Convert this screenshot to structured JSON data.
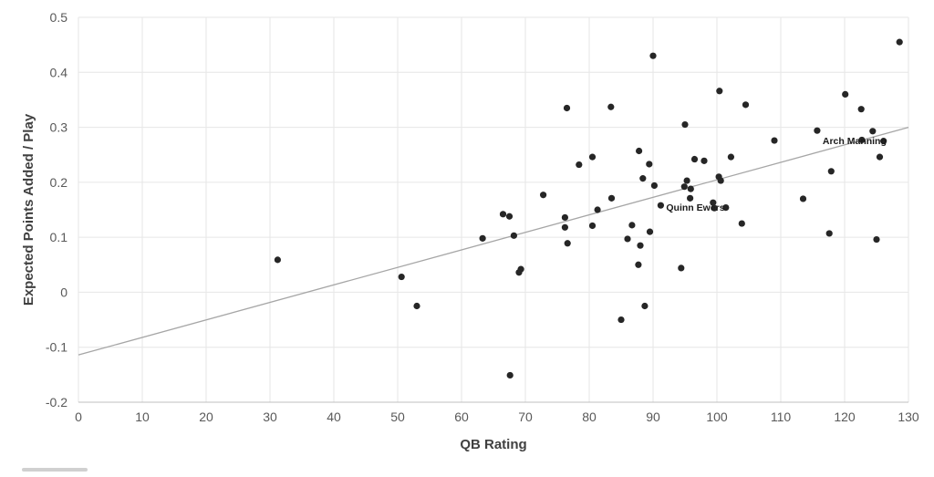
{
  "chart_data": {
    "type": "scatter",
    "xlabel": "QB Rating",
    "ylabel": "Expected Points Added / Play",
    "xlim": [
      0,
      130
    ],
    "ylim": [
      -0.2,
      0.5
    ],
    "x_ticks": [
      0,
      10,
      20,
      30,
      40,
      50,
      60,
      70,
      80,
      90,
      100,
      110,
      120,
      130
    ],
    "y_ticks": [
      -0.2,
      -0.1,
      0,
      0.1,
      0.2,
      0.3,
      0.4,
      0.5
    ],
    "grid": true,
    "point_color": "#262626",
    "trendline": {
      "from": [
        0,
        -0.114
      ],
      "to": [
        130,
        0.3
      ],
      "color": "#a6a6a6"
    },
    "points": [
      {
        "x": 31.2,
        "y": 0.059
      },
      {
        "x": 50.6,
        "y": 0.028
      },
      {
        "x": 53.0,
        "y": -0.025
      },
      {
        "x": 63.3,
        "y": 0.098
      },
      {
        "x": 66.5,
        "y": 0.142
      },
      {
        "x": 67.5,
        "y": 0.138
      },
      {
        "x": 67.6,
        "y": -0.151
      },
      {
        "x": 68.2,
        "y": 0.103
      },
      {
        "x": 69.0,
        "y": 0.036
      },
      {
        "x": 69.3,
        "y": 0.042
      },
      {
        "x": 72.8,
        "y": 0.177
      },
      {
        "x": 76.2,
        "y": 0.136
      },
      {
        "x": 76.2,
        "y": 0.118
      },
      {
        "x": 76.5,
        "y": 0.335
      },
      {
        "x": 76.6,
        "y": 0.089
      },
      {
        "x": 78.4,
        "y": 0.232
      },
      {
        "x": 80.5,
        "y": 0.246
      },
      {
        "x": 80.5,
        "y": 0.121
      },
      {
        "x": 81.3,
        "y": 0.15
      },
      {
        "x": 83.4,
        "y": 0.337
      },
      {
        "x": 83.5,
        "y": 0.171
      },
      {
        "x": 85.0,
        "y": -0.05
      },
      {
        "x": 86.0,
        "y": 0.097
      },
      {
        "x": 86.7,
        "y": 0.122
      },
      {
        "x": 87.7,
        "y": 0.05
      },
      {
        "x": 87.8,
        "y": 0.257
      },
      {
        "x": 88.0,
        "y": 0.085
      },
      {
        "x": 88.4,
        "y": 0.207
      },
      {
        "x": 88.7,
        "y": -0.025
      },
      {
        "x": 89.4,
        "y": 0.233
      },
      {
        "x": 89.5,
        "y": 0.11
      },
      {
        "x": 90.0,
        "y": 0.43
      },
      {
        "x": 90.2,
        "y": 0.194
      },
      {
        "x": 91.2,
        "y": 0.158
      },
      {
        "x": 94.4,
        "y": 0.044
      },
      {
        "x": 94.9,
        "y": 0.192
      },
      {
        "x": 95.0,
        "y": 0.305
      },
      {
        "x": 95.3,
        "y": 0.203
      },
      {
        "x": 95.8,
        "y": 0.171
      },
      {
        "x": 95.9,
        "y": 0.188
      },
      {
        "x": 96.5,
        "y": 0.242
      },
      {
        "x": 98.0,
        "y": 0.239
      },
      {
        "x": 99.4,
        "y": 0.163
      },
      {
        "x": 99.6,
        "y": 0.153
      },
      {
        "x": 100.3,
        "y": 0.21
      },
      {
        "x": 100.4,
        "y": 0.366
      },
      {
        "x": 100.6,
        "y": 0.203
      },
      {
        "x": 101.4,
        "y": 0.154
      },
      {
        "x": 102.2,
        "y": 0.246
      },
      {
        "x": 103.9,
        "y": 0.125
      },
      {
        "x": 104.5,
        "y": 0.341
      },
      {
        "x": 109.0,
        "y": 0.276
      },
      {
        "x": 113.5,
        "y": 0.17
      },
      {
        "x": 115.7,
        "y": 0.294
      },
      {
        "x": 117.6,
        "y": 0.107
      },
      {
        "x": 117.9,
        "y": 0.22
      },
      {
        "x": 120.1,
        "y": 0.36
      },
      {
        "x": 122.6,
        "y": 0.333
      },
      {
        "x": 122.7,
        "y": 0.277
      },
      {
        "x": 124.4,
        "y": 0.293
      },
      {
        "x": 125.0,
        "y": 0.096
      },
      {
        "x": 125.5,
        "y": 0.246
      },
      {
        "x": 126.1,
        "y": 0.275
      },
      {
        "x": 128.6,
        "y": 0.455
      }
    ],
    "annotations": [
      {
        "text": "Quinn Ewers",
        "x": 91.2,
        "y": 0.155
      },
      {
        "text": "Arch Manning",
        "x": 115.7,
        "y": 0.276
      }
    ]
  }
}
